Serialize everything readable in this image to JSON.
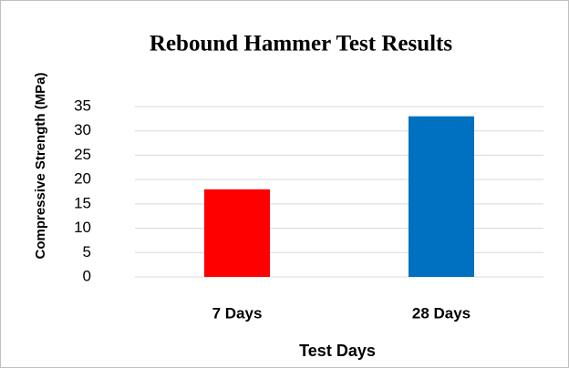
{
  "chart_data": {
    "type": "bar",
    "title": "Rebound Hammer Test Results",
    "x_label": "Test Days",
    "y_label": "Compressive Strength (MPa)",
    "categories": [
      "7 Days",
      "28 Days"
    ],
    "values": [
      18,
      33
    ],
    "colors": [
      "#ff0000",
      "#0070c0"
    ],
    "ylim": [
      0,
      35
    ],
    "yticks": [
      0,
      5,
      10,
      15,
      20,
      25,
      30,
      35
    ],
    "grid": true
  }
}
